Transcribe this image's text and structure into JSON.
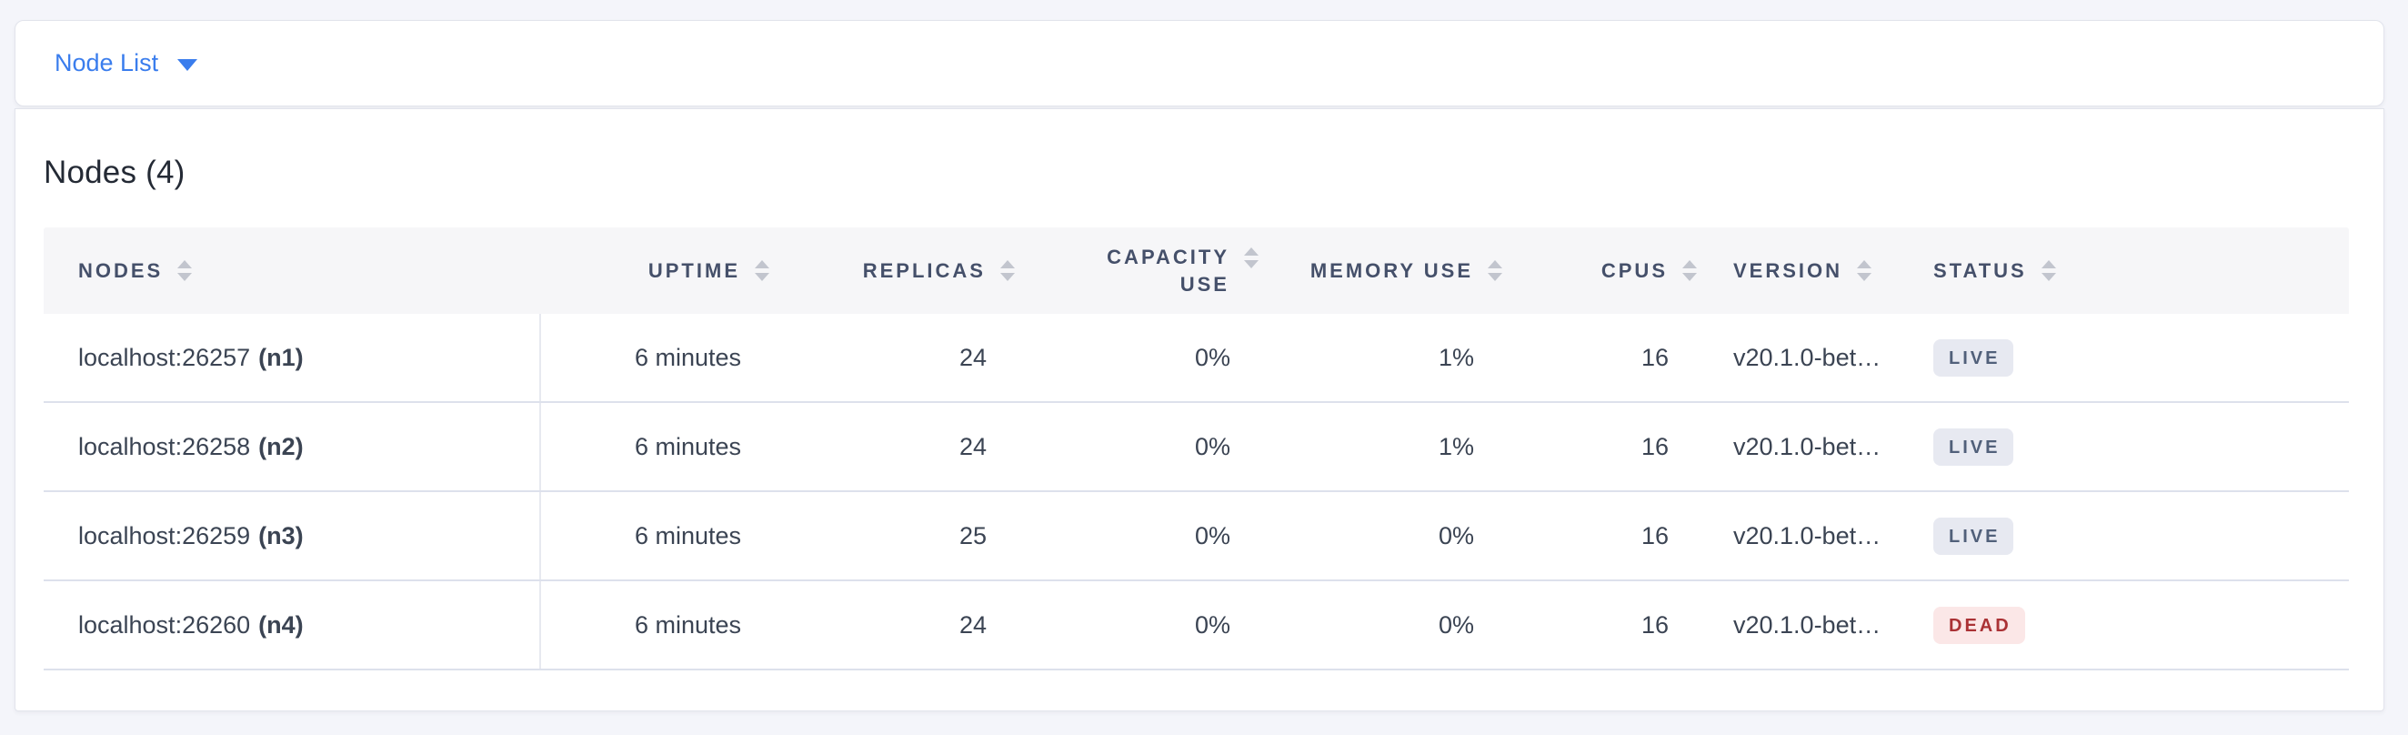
{
  "view_selector": {
    "label": "Node List",
    "accent_color": "#3a7ded"
  },
  "summary": {
    "heading": "Nodes (4)"
  },
  "table": {
    "columns": [
      {
        "id": "nodes",
        "label": "Nodes",
        "align": "left",
        "sortable": true
      },
      {
        "id": "uptime",
        "label": "Uptime",
        "align": "right",
        "sortable": true
      },
      {
        "id": "replicas",
        "label": "Replicas",
        "align": "right",
        "sortable": true
      },
      {
        "id": "capacity_use",
        "label": "Capacity Use",
        "align": "right",
        "sortable": true
      },
      {
        "id": "memory_use",
        "label": "Memory Use",
        "align": "right",
        "sortable": true
      },
      {
        "id": "cpus",
        "label": "CPUs",
        "align": "right",
        "sortable": true
      },
      {
        "id": "version",
        "label": "Version",
        "align": "left",
        "sortable": true
      },
      {
        "id": "status",
        "label": "Status",
        "align": "left",
        "sortable": true
      }
    ],
    "rows": [
      {
        "address": "localhost:26257",
        "node_id": "(n1)",
        "uptime": "6 minutes",
        "replicas": "24",
        "capacity_use": "0%",
        "memory_use": "1%",
        "cpus": "16",
        "version": "v20.1.0-bet…",
        "status": "LIVE"
      },
      {
        "address": "localhost:26258",
        "node_id": "(n2)",
        "uptime": "6 minutes",
        "replicas": "24",
        "capacity_use": "0%",
        "memory_use": "1%",
        "cpus": "16",
        "version": "v20.1.0-bet…",
        "status": "LIVE"
      },
      {
        "address": "localhost:26259",
        "node_id": "(n3)",
        "uptime": "6 minutes",
        "replicas": "25",
        "capacity_use": "0%",
        "memory_use": "0%",
        "cpus": "16",
        "version": "v20.1.0-bet…",
        "status": "LIVE"
      },
      {
        "address": "localhost:26260",
        "node_id": "(n4)",
        "uptime": "6 minutes",
        "replicas": "24",
        "capacity_use": "0%",
        "memory_use": "0%",
        "cpus": "16",
        "version": "v20.1.0-bet…",
        "status": "DEAD"
      }
    ]
  },
  "status_colors": {
    "live": {
      "bg": "#e7e9f1",
      "text": "#51607a"
    },
    "dead": {
      "bg": "#fbe7e7",
      "text": "#aa3235"
    }
  }
}
